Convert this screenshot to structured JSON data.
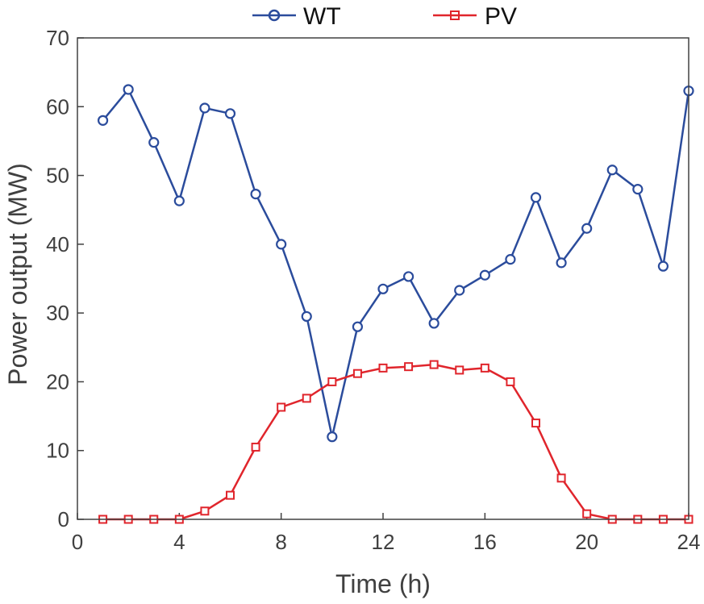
{
  "chart_data": {
    "type": "line",
    "xlabel": "Time (h)",
    "ylabel": "Power output (MW)",
    "xlim": [
      0,
      24
    ],
    "ylim": [
      0,
      70
    ],
    "xticks": [
      0,
      4,
      8,
      12,
      16,
      20,
      24
    ],
    "yticks": [
      0,
      10,
      20,
      30,
      40,
      50,
      60,
      70
    ],
    "grid": false,
    "legend_position": "top-center",
    "x": [
      1,
      2,
      3,
      4,
      5,
      6,
      7,
      8,
      9,
      10,
      11,
      12,
      13,
      14,
      15,
      16,
      17,
      18,
      19,
      20,
      21,
      22,
      23,
      24
    ],
    "series": [
      {
        "name": "WT",
        "marker": "circle",
        "color": "#2b4c9c",
        "values": [
          58.0,
          62.5,
          54.8,
          46.3,
          59.8,
          59.0,
          47.3,
          40.0,
          29.5,
          12.0,
          28.0,
          33.5,
          35.3,
          28.5,
          33.3,
          35.5,
          37.8,
          46.8,
          37.3,
          42.3,
          50.8,
          48.0,
          36.8,
          62.3
        ]
      },
      {
        "name": "PV",
        "marker": "square",
        "color": "#e0252c",
        "values": [
          0,
          0,
          0,
          0,
          1.2,
          3.5,
          10.5,
          16.3,
          17.6,
          20.0,
          21.2,
          22.0,
          22.2,
          22.5,
          21.7,
          22.0,
          20.0,
          14.0,
          6.0,
          0.8,
          0,
          0,
          0,
          0
        ]
      }
    ]
  }
}
